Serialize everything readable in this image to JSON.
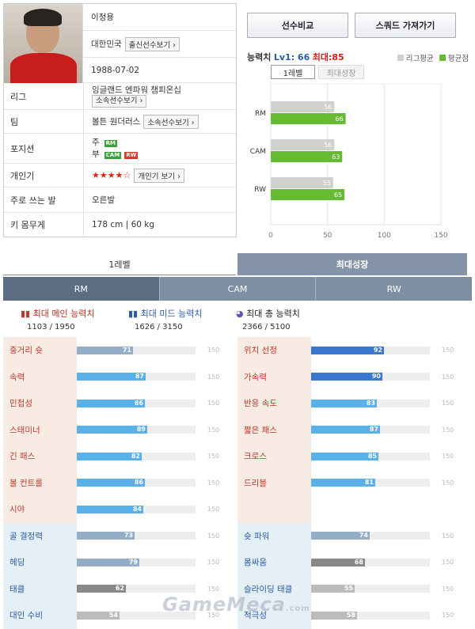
{
  "player": {
    "name": "이청용",
    "nation": "대한민국",
    "nation_btn": "출신선수보기",
    "birth": "1988-07-02",
    "league_label": "리그",
    "league": "잉글랜드 엔파워 챔피온십",
    "league_btn": "소속선수보기",
    "team_label": "팀",
    "team": "볼튼 원더러스",
    "team_btn": "소속선수보기",
    "position_label": "포지션",
    "pos_main_label": "주",
    "pos_main": "RM",
    "pos_sub_label": "부",
    "pos_sub1": "CAM",
    "pos_sub2": "RW",
    "skill_label": "개인기",
    "skill_stars": "★★★★☆",
    "skill_btn": "개인기 보기",
    "foot_label": "주로 쓰는 발",
    "foot": "오른발",
    "hw_label": "키 몸무게",
    "hw": "178 cm | 60 kg"
  },
  "buttons": {
    "compare": "선수비교",
    "squad": "스쿼드 가져가기"
  },
  "ability": {
    "title": "능력치",
    "lv": "Lv1: 66",
    "max": "최대:85",
    "legend_league": "리그평균",
    "legend_avg": "평균점",
    "tab_lv1": "1레벨",
    "tab_max": "최대성장"
  },
  "colors": {
    "league_bar": "#d0d0d0",
    "avg_bar": "#66bb33",
    "active_tab": "#8593a6"
  },
  "chart_data": {
    "type": "bar",
    "categories": [
      "RM",
      "CAM",
      "RW"
    ],
    "series": [
      {
        "name": "리그평균",
        "values": [
          56,
          56,
          55
        ]
      },
      {
        "name": "평균점",
        "values": [
          66,
          63,
          65
        ]
      }
    ],
    "xlim": [
      0,
      150
    ],
    "ticks": [
      "0",
      "50",
      "100",
      "150"
    ]
  },
  "lower_tabs": {
    "lv1": "1레벨",
    "max": "최대성장"
  },
  "pos_tabs": [
    "RM",
    "CAM",
    "RW"
  ],
  "sums": {
    "main": {
      "label": "최대 메인 능력치",
      "value": "1103 / 1950"
    },
    "mid": {
      "label": "최대 미드 능력치",
      "value": "1626 / 3150"
    },
    "total": {
      "label": "최대 총 능력치",
      "value": "2366 / 5100"
    }
  },
  "max_label": "150",
  "stats_left": [
    {
      "name": "중거리 슛",
      "value": 71,
      "color": "#95aec8",
      "bg": "#f7ebe3"
    },
    {
      "name": "속력",
      "value": 87,
      "color": "#5ab0e8",
      "bg": "#f7ebe3"
    },
    {
      "name": "민첩성",
      "value": 86,
      "color": "#5ab0e8",
      "bg": "#f7ebe3"
    },
    {
      "name": "스태미너",
      "value": 89,
      "color": "#5ab0e8",
      "bg": "#f7ebe3"
    },
    {
      "name": "긴 패스",
      "value": 82,
      "color": "#5ab0e8",
      "bg": "#f7ebe3"
    },
    {
      "name": "볼 컨트롤",
      "value": 86,
      "color": "#5ab0e8",
      "bg": "#f7ebe3"
    },
    {
      "name": "시야",
      "value": 84,
      "color": "#5ab0e8",
      "bg": "#f7ebe3"
    },
    {
      "name": "골 결정력",
      "value": 73,
      "color": "#95aec8",
      "bg": "#e4f0f6"
    },
    {
      "name": "헤딩",
      "value": 79,
      "color": "#95aec8",
      "bg": "#e4f0f6"
    },
    {
      "name": "태클",
      "value": 62,
      "color": "#888888",
      "bg": "#e4f0f6"
    },
    {
      "name": "대인 수비",
      "value": 54,
      "color": "#bbbbbb",
      "bg": "#e4f0f6"
    }
  ],
  "stats_right": [
    {
      "name": "위치 선정",
      "value": 92,
      "color": "#3a78cf",
      "bg": "#f7ebe3"
    },
    {
      "name": "가속력",
      "value": 90,
      "color": "#3a78cf",
      "bg": "#f7ebe3"
    },
    {
      "name": "반응 속도",
      "value": 83,
      "color": "#5ab0e8",
      "bg": "#f7ebe3"
    },
    {
      "name": "짧은 패스",
      "value": 87,
      "color": "#5ab0e8",
      "bg": "#f7ebe3"
    },
    {
      "name": "크로스",
      "value": 85,
      "color": "#5ab0e8",
      "bg": "#f7ebe3"
    },
    {
      "name": "드리블",
      "value": 81,
      "color": "#5ab0e8",
      "bg": "#f7ebe3"
    },
    {
      "name": "",
      "value": null,
      "color": "",
      "bg": "#f7ebe3"
    },
    {
      "name": "슛 파워",
      "value": 74,
      "color": "#95aec8",
      "bg": "#e4f0f6"
    },
    {
      "name": "몸싸움",
      "value": 68,
      "color": "#888888",
      "bg": "#e4f0f6"
    },
    {
      "name": "슬라이딩 태클",
      "value": 55,
      "color": "#bbbbbb",
      "bg": "#e4f0f6"
    },
    {
      "name": "적극성",
      "value": 58,
      "color": "#bbbbbb",
      "bg": "#e4f0f6"
    }
  ],
  "watermark": {
    "brand": "GameMeca",
    "suffix": ".com"
  }
}
